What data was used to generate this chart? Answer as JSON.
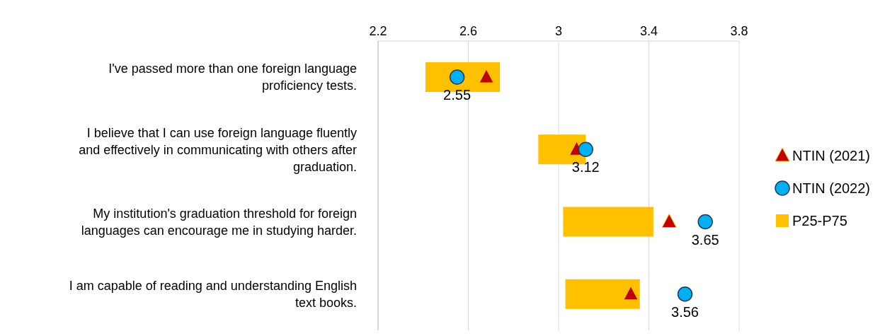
{
  "chart_data": {
    "type": "bar",
    "orientation": "horizontal",
    "categories": [
      "I've passed more than one foreign language proficiency tests.",
      "I believe that I can use foreign language fluently and effectively in communicating with others after graduation.",
      "My institution's graduation threshold for foreign languages can encourage me in studying harder.",
      "I am capable of reading and understanding English text books."
    ],
    "series": [
      {
        "name": "NTIN (2021)",
        "type": "scatter",
        "marker": "triangle",
        "color": "#c00000",
        "values": [
          2.68,
          3.08,
          3.49,
          3.32
        ]
      },
      {
        "name": "NTIN (2022)",
        "type": "scatter",
        "marker": "circle",
        "color": "#00b0f0",
        "values": [
          2.55,
          3.12,
          3.65,
          3.56
        ],
        "value_labels": [
          "2.55",
          "3.12",
          "3.65",
          "3.56"
        ]
      },
      {
        "name": "P25-P75",
        "color": "#ffc000",
        "base": [
          2.41,
          2.91,
          3.02,
          3.03
        ],
        "values": [
          0.33,
          0.21,
          0.4,
          0.33
        ]
      }
    ],
    "xlim": [
      2.2,
      3.8
    ],
    "xticks": [
      2.2,
      2.6,
      3,
      3.4,
      3.8
    ],
    "grid": "x",
    "legend": "right"
  }
}
